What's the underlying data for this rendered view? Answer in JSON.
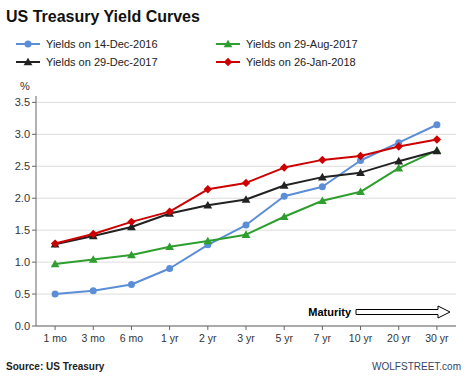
{
  "chart_data": {
    "type": "line",
    "title": "US Treasury Yield Curves",
    "ylabel": "%",
    "annotations": [
      "Maturity",
      "Source: US Treasury",
      "WOLFSTREET.com"
    ],
    "categories": [
      "1 mo",
      "3 mo",
      "6 mo",
      "1 yr",
      "2 yr",
      "3 yr",
      "5 yr",
      "7 yr",
      "10 yr",
      "20 yr",
      "30 yr"
    ],
    "series": [
      {
        "name": "Yields on 14-Dec-2016",
        "color": "#5b8ed6",
        "marker": "circle",
        "values": [
          0.5,
          0.55,
          0.65,
          0.9,
          1.27,
          1.58,
          2.03,
          2.18,
          2.59,
          2.87,
          3.15
        ]
      },
      {
        "name": "Yields on 29-Aug-2017",
        "color": "#2e9e2e",
        "marker": "triangle",
        "values": [
          0.97,
          1.04,
          1.11,
          1.24,
          1.33,
          1.43,
          1.71,
          1.96,
          2.1,
          2.47,
          2.75
        ]
      },
      {
        "name": "Yields on 29-Dec-2017",
        "color": "#222222",
        "marker": "triangle",
        "values": [
          1.28,
          1.41,
          1.55,
          1.76,
          1.89,
          1.98,
          2.2,
          2.33,
          2.4,
          2.58,
          2.74
        ]
      },
      {
        "name": "Yields on 26-Jan-2018",
        "color": "#cc0000",
        "marker": "diamond",
        "values": [
          1.29,
          1.44,
          1.63,
          1.79,
          2.14,
          2.24,
          2.48,
          2.6,
          2.66,
          2.81,
          2.92
        ]
      }
    ],
    "ylim": [
      0,
      3.6
    ],
    "yticks": [
      {
        "value": 0,
        "label": "0.0"
      },
      0.5,
      {
        "value": 1,
        "label": "1.0"
      },
      1.5,
      {
        "value": 2,
        "label": "2.0"
      },
      2.5,
      {
        "value": 3,
        "label": "3.0"
      },
      3.5
    ],
    "grid": true,
    "legend": "top left"
  }
}
